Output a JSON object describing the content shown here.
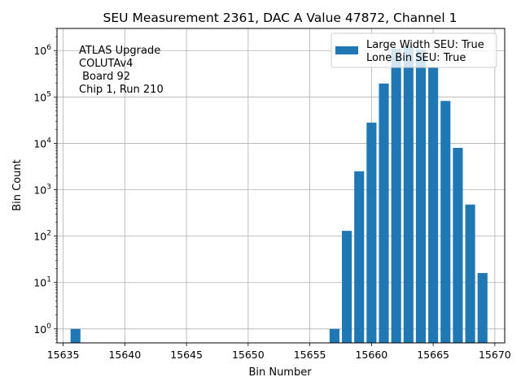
{
  "chart_data": {
    "type": "bar",
    "title": "SEU Measurement 2361, DAC A Value 47872, Channel 1",
    "xlabel": "Bin Number",
    "ylabel": "Bin Count",
    "y_scale": "log",
    "xlim": [
      15634.5,
      15670.8
    ],
    "ylim": [
      0.5,
      3000000
    ],
    "x_ticks": [
      15635,
      15640,
      15645,
      15650,
      15655,
      15660,
      15665,
      15670
    ],
    "x_tick_labels": [
      "15635",
      "15640",
      "15645",
      "15650",
      "15655",
      "15660",
      "15665",
      "15670"
    ],
    "y_ticks": [
      1,
      10,
      100,
      1000,
      10000,
      100000,
      1000000
    ],
    "y_tick_labels": [
      {
        "base": "10",
        "exp": "0"
      },
      {
        "base": "10",
        "exp": "1"
      },
      {
        "base": "10",
        "exp": "2"
      },
      {
        "base": "10",
        "exp": "3"
      },
      {
        "base": "10",
        "exp": "4"
      },
      {
        "base": "10",
        "exp": "5"
      },
      {
        "base": "10",
        "exp": "6"
      }
    ],
    "grid": true,
    "bar_color": "#1f77b4",
    "series": [
      {
        "name": "Large Width SEU: True\nLone Bin SEU: True",
        "x": [
          15636,
          15657,
          15658,
          15659,
          15660,
          15661,
          15662,
          15663,
          15664,
          15665,
          15666,
          15667,
          15668,
          15669
        ],
        "values": [
          1,
          1,
          130,
          2500,
          28000,
          195000,
          1100000,
          1300000,
          1050000,
          430000,
          82000,
          8000,
          480,
          16
        ]
      }
    ],
    "legend": {
      "position": "top-right",
      "lines": [
        "Large Width SEU: True",
        "Lone Bin SEU: True"
      ]
    },
    "annotation": {
      "position": "top-left",
      "lines": [
        "ATLAS Upgrade",
        "COLUTAv4",
        " Board 92",
        "Chip 1, Run 210"
      ]
    }
  }
}
